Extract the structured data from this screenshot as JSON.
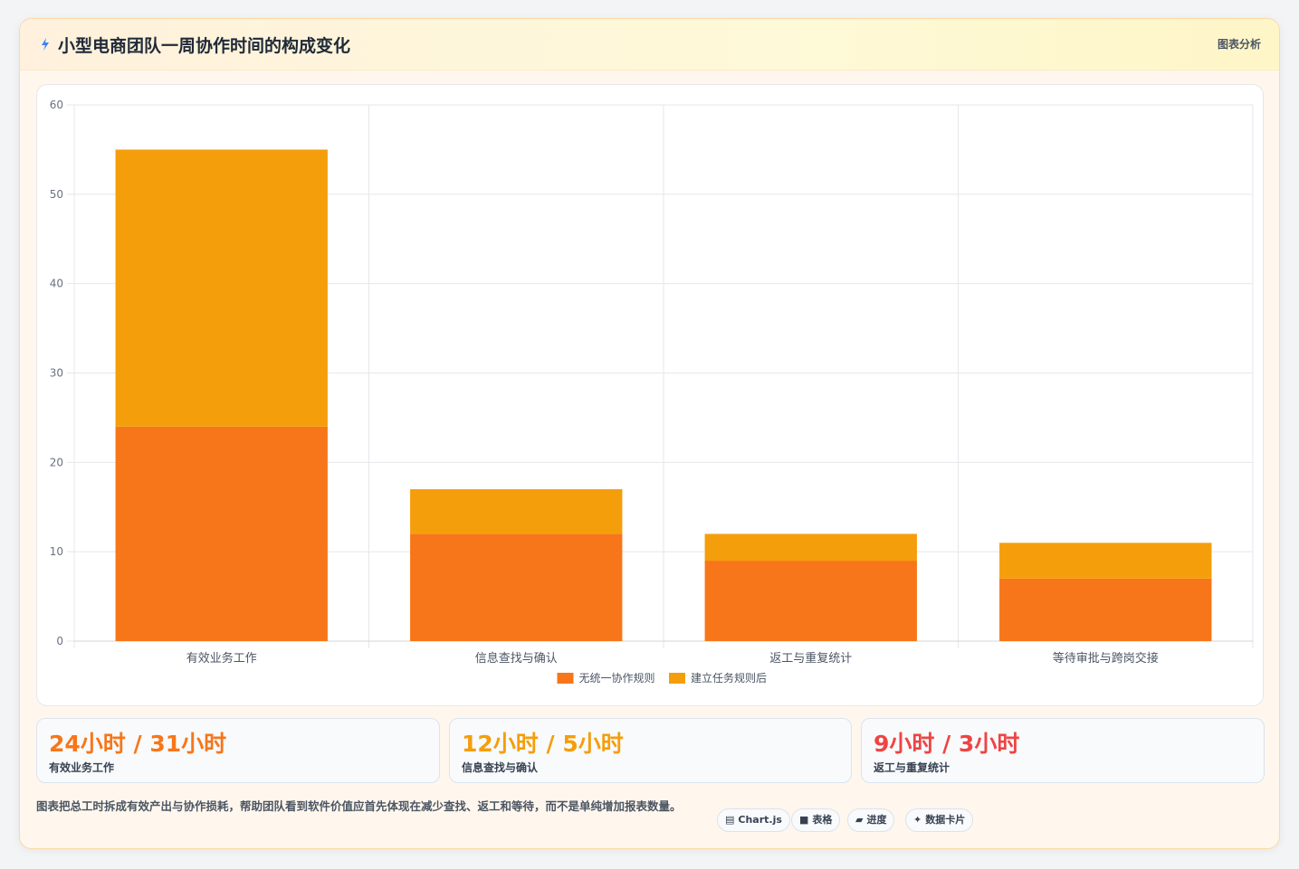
{
  "header": {
    "title": "小型电商团队一周协作时间的构成变化",
    "tag": "图表分析",
    "icon": "lightning-icon"
  },
  "chart_data": {
    "type": "bar",
    "stacked": true,
    "categories": [
      "有效业务工作",
      "信息查找与确认",
      "返工与重复统计",
      "等待审批与跨岗交接"
    ],
    "series": [
      {
        "name": "无统一协作规则",
        "values": [
          24,
          12,
          9,
          7
        ],
        "color": "#f77619"
      },
      {
        "name": "建立任务规则后",
        "values": [
          31,
          5,
          3,
          4
        ],
        "color": "#f59e0b"
      }
    ],
    "ylim": [
      0,
      60
    ],
    "yticks": [
      0,
      10,
      20,
      30,
      40,
      50,
      60
    ],
    "grid": true,
    "legend_position": "bottom"
  },
  "stats": [
    {
      "value": "24小时 / 31小时",
      "label": "有效业务工作",
      "color": "#f77619"
    },
    {
      "value": "12小时 / 5小时",
      "label": "信息查找与确认",
      "color": "#f59e0b"
    },
    {
      "value": "9小时 / 3小时",
      "label": "返工与重复统计",
      "color": "#ef4444"
    }
  ],
  "footnote": "图表把总工时拆成有效产出与协作损耗，帮助团队看到软件价值应首先体现在减少查找、返工和等待，而不是单纯增加报表数量。",
  "chips": [
    {
      "icon": "chart-icon",
      "glyph": "▤",
      "label": "Chart.js"
    },
    {
      "icon": "table-icon",
      "glyph": "■",
      "label": "表格"
    },
    {
      "icon": "progress-icon",
      "glyph": "▰",
      "label": "进度"
    },
    {
      "icon": "sparkle-icon",
      "glyph": "✦",
      "label": "数据卡片"
    }
  ]
}
